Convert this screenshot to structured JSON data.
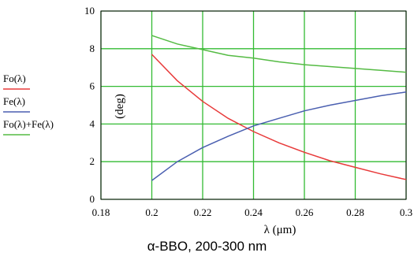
{
  "caption": "α-BBO, 200-300 nm",
  "chart_data": {
    "type": "line",
    "xlabel": "λ (μm)",
    "ylabel": "(deg)",
    "xlim": [
      0.18,
      0.3
    ],
    "ylim": [
      0,
      10
    ],
    "x_ticks": [
      "0.18",
      "0.2",
      "0.22",
      "0.24",
      "0.26",
      "0.28",
      "0.3"
    ],
    "y_ticks": [
      "0",
      "2",
      "4",
      "6",
      "8",
      "10"
    ],
    "grid": true,
    "grid_color": "#33bb33",
    "legend_position": "left",
    "series": [
      {
        "name": "Fo(λ)",
        "color": "#e83a3a",
        "x": [
          0.2,
          0.21,
          0.22,
          0.23,
          0.24,
          0.25,
          0.26,
          0.27,
          0.28,
          0.29,
          0.3
        ],
        "values": [
          7.7,
          6.3,
          5.2,
          4.3,
          3.6,
          3.0,
          2.5,
          2.05,
          1.7,
          1.35,
          1.05
        ]
      },
      {
        "name": "Fe(λ)",
        "color": "#4a5fb0",
        "x": [
          0.2,
          0.21,
          0.22,
          0.23,
          0.24,
          0.25,
          0.26,
          0.27,
          0.28,
          0.29,
          0.3
        ],
        "values": [
          1.0,
          2.0,
          2.75,
          3.35,
          3.9,
          4.3,
          4.7,
          5.0,
          5.25,
          5.5,
          5.7
        ]
      },
      {
        "name": "Fo(λ)+Fe(λ)",
        "color": "#55bb44",
        "x": [
          0.2,
          0.21,
          0.22,
          0.23,
          0.24,
          0.25,
          0.26,
          0.27,
          0.28,
          0.29,
          0.3
        ],
        "values": [
          8.7,
          8.25,
          7.95,
          7.65,
          7.5,
          7.3,
          7.15,
          7.05,
          6.95,
          6.85,
          6.75
        ]
      }
    ]
  }
}
